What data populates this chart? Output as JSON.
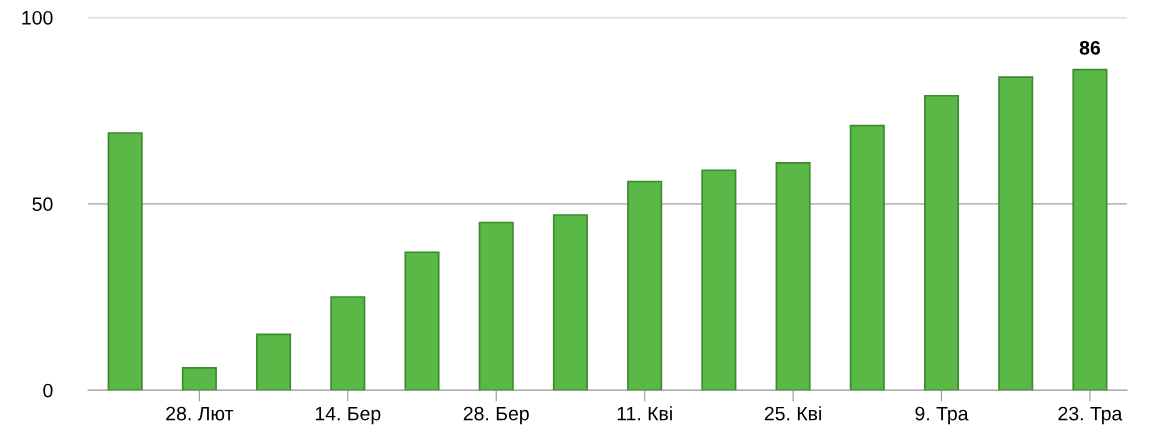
{
  "chart_data": {
    "type": "bar",
    "categories": [
      null,
      "28. Лют",
      null,
      "14. Бер",
      null,
      "28. Бер",
      null,
      "11. Кві",
      null,
      "25. Кві",
      null,
      "9. Тра",
      null,
      "23. Тра"
    ],
    "values": [
      69,
      6,
      15,
      25,
      37,
      45,
      47,
      56,
      59,
      61,
      71,
      79,
      84,
      86
    ],
    "value_labels": [
      null,
      null,
      null,
      null,
      null,
      null,
      null,
      null,
      null,
      null,
      null,
      null,
      null,
      "86"
    ],
    "color": "#5ab946",
    "ylim": [
      0,
      100
    ],
    "yticks": [
      0,
      50,
      100
    ],
    "grid": "y"
  }
}
